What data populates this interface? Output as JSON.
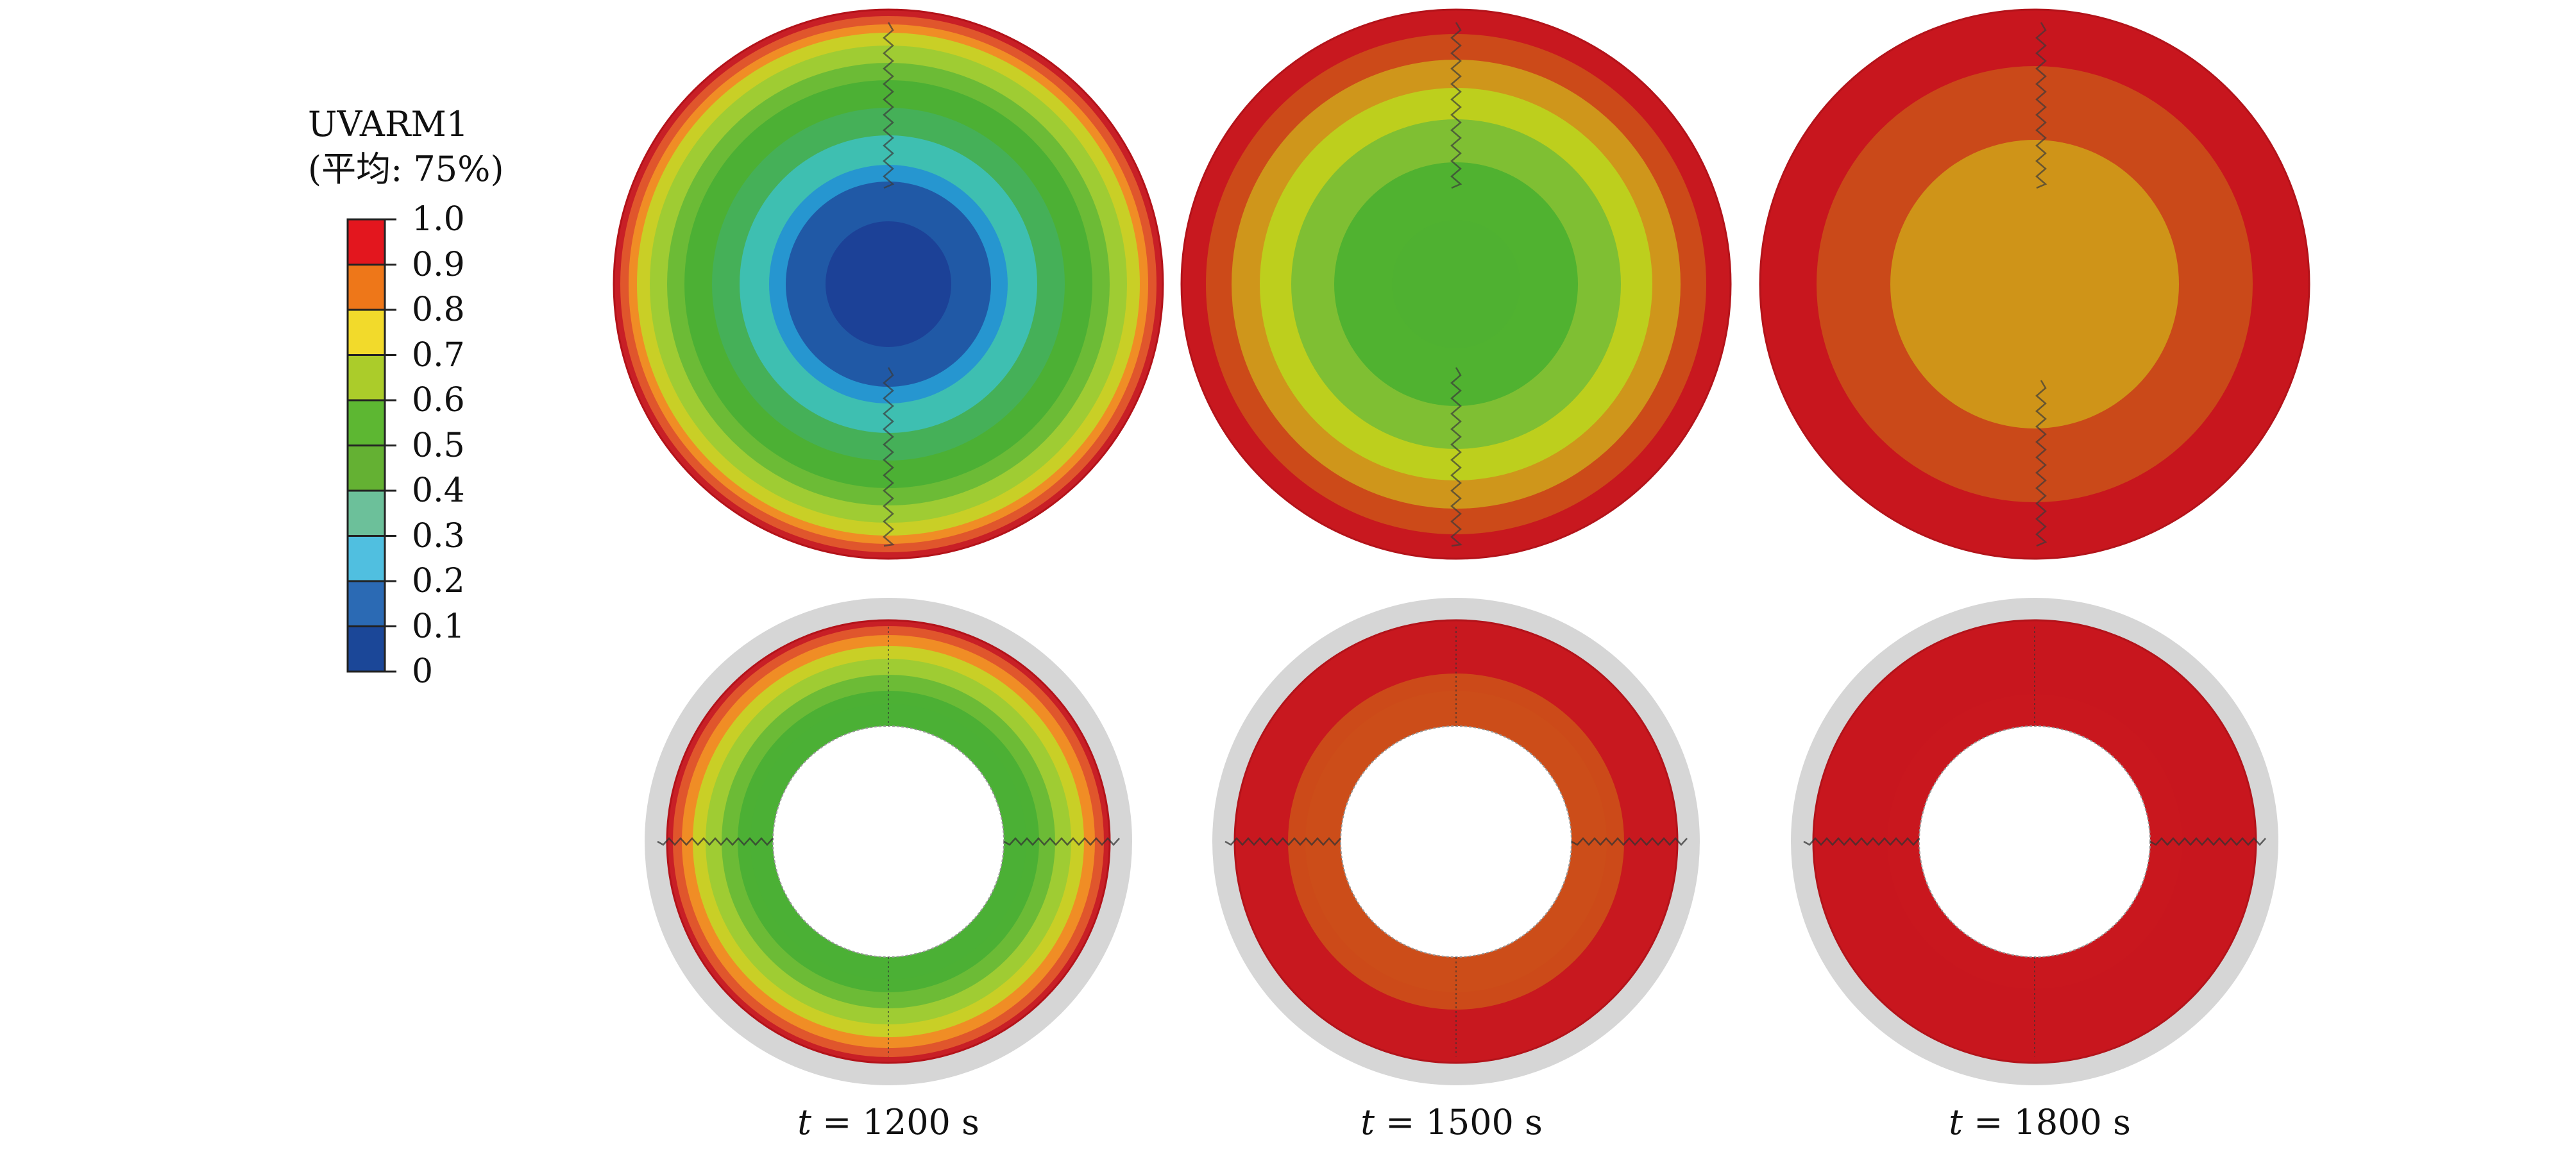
{
  "legend": {
    "title_line1": "UVARM1",
    "title_line2": "(平均: 75%)",
    "ticks": [
      "1.0",
      "0.9",
      "0.8",
      "0.7",
      "0.6",
      "0.5",
      "0.4",
      "0.3",
      "0.2",
      "0.1",
      "0"
    ],
    "bands": [
      {
        "value": 0.95,
        "color": "#e3161e"
      },
      {
        "value": 0.85,
        "color": "#ee7719"
      },
      {
        "value": 0.75,
        "color": "#f2da2b"
      },
      {
        "value": 0.65,
        "color": "#abcc2a"
      },
      {
        "value": 0.55,
        "color": "#5db732"
      },
      {
        "value": 0.45,
        "color": "#64b133"
      },
      {
        "value": 0.35,
        "color": "#6cc09a"
      },
      {
        "value": 0.25,
        "color": "#50bfe0"
      },
      {
        "value": 0.15,
        "color": "#2b6ab4"
      },
      {
        "value": 0.05,
        "color": "#1b4798"
      }
    ]
  },
  "panels": [
    {
      "time_var": "t",
      "time_value": "= 1200 s",
      "solid_rings": [
        "#c81f26",
        "#e0562c",
        "#f08d25",
        "#c9cf26",
        "#9fcc33",
        "#6cbb36",
        "#4cb034",
        "#45b058",
        "#3ebfb1",
        "#2696d0",
        "#2059a6",
        "#1c4197"
      ],
      "hollow_rings": [
        "#c81f26",
        "#e0562c",
        "#f08d25",
        "#c9cf26",
        "#9fcc33",
        "#6cbb36",
        "#4cb034",
        "#4bb035"
      ]
    },
    {
      "time_var": "t",
      "time_value": "= 1500 s",
      "solid_rings": [
        "#c8181f",
        "#cc4a19",
        "#cf961b",
        "#bdcf1d",
        "#7fbf33",
        "#50b230",
        "#4fb131"
      ],
      "hollow_rings": [
        "#c8181f",
        "#cc4a19",
        "#cc4d19"
      ]
    },
    {
      "time_var": "t",
      "time_value": "= 1800 s",
      "solid_rings": [
        "#c8161e",
        "#ca4919",
        "#cf9418"
      ],
      "hollow_rings": [
        "#c8161e",
        "#c9171e"
      ]
    }
  ]
}
